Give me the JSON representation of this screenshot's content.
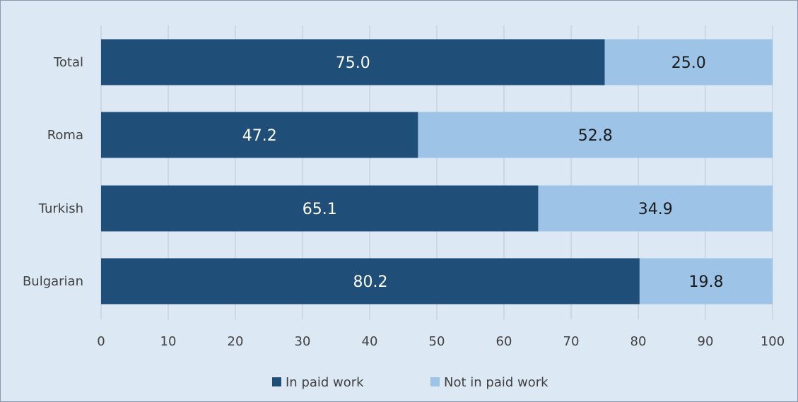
{
  "chart_data": {
    "type": "bar",
    "orientation": "horizontal",
    "stacked": true,
    "categories": [
      "Total",
      "Roma",
      "Turkish",
      "Bulgarian"
    ],
    "series": [
      {
        "name": "In paid work",
        "values": [
          75.0,
          47.2,
          65.1,
          80.2
        ],
        "color": "#1f4e79"
      },
      {
        "name": "Not in paid work",
        "values": [
          25.0,
          52.8,
          34.9,
          19.8
        ],
        "color": "#9dc3e6"
      }
    ],
    "xlim": [
      0,
      100
    ],
    "xticks": [
      0,
      10,
      20,
      30,
      40,
      50,
      60,
      70,
      80,
      90,
      100
    ],
    "grid": true,
    "legend_position": "bottom",
    "value_format": "one-decimal"
  }
}
